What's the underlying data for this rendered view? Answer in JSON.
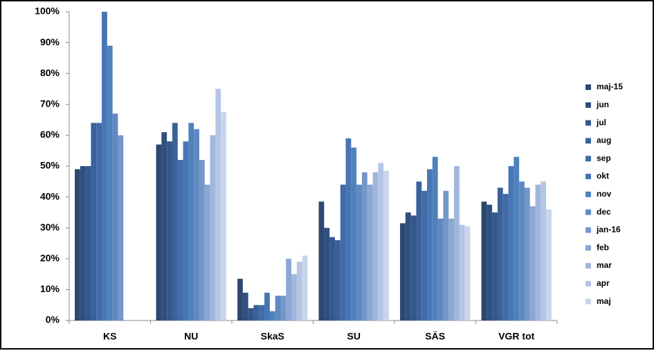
{
  "chart_data": {
    "type": "bar",
    "categories": [
      "KS",
      "NU",
      "SkaS",
      "SU",
      "SÄS",
      "VGR tot"
    ],
    "ylim": [
      0,
      100
    ],
    "yticks": [
      {
        "value": 0,
        "label": "0%"
      },
      {
        "value": 10,
        "label": "10%"
      },
      {
        "value": 20,
        "label": "20%"
      },
      {
        "value": 30,
        "label": "30%"
      },
      {
        "value": 40,
        "label": "40%"
      },
      {
        "value": 50,
        "label": "50%"
      },
      {
        "value": 60,
        "label": "60%"
      },
      {
        "value": 70,
        "label": "70%"
      },
      {
        "value": 80,
        "label": "80%"
      },
      {
        "value": 90,
        "label": "90%"
      },
      {
        "value": 100,
        "label": "100%"
      }
    ],
    "grid": false,
    "legend": "right",
    "series": [
      {
        "name": "maj-15",
        "color": "#2c4770",
        "values": [
          49,
          57,
          13.5,
          38.5,
          31.5,
          38.5
        ]
      },
      {
        "name": "jun",
        "color": "#2f4f7f",
        "values": [
          50,
          61,
          9,
          30,
          35,
          37.5
        ]
      },
      {
        "name": "jul",
        "color": "#34578c",
        "values": [
          50,
          58,
          4,
          27,
          34,
          35
        ]
      },
      {
        "name": "aug",
        "color": "#3a6199",
        "values": [
          64,
          64,
          5,
          26,
          45,
          43
        ]
      },
      {
        "name": "sep",
        "color": "#416ca8",
        "values": [
          64,
          52,
          5,
          44,
          42,
          41
        ]
      },
      {
        "name": "okt",
        "color": "#4876b4",
        "values": [
          100,
          58,
          9,
          59,
          49,
          50
        ]
      },
      {
        "name": "nov",
        "color": "#4f81bd",
        "values": [
          89,
          64,
          3,
          56,
          53,
          53
        ]
      },
      {
        "name": "dec",
        "color": "#6089c2",
        "values": [
          67,
          62,
          8,
          44,
          33,
          45
        ]
      },
      {
        "name": "jan-16",
        "color": "#7496c9",
        "values": [
          60,
          52,
          8,
          48,
          42,
          43
        ]
      },
      {
        "name": "feb",
        "color": "#8ba7d3",
        "values": [
          null,
          44,
          20,
          44,
          33,
          37
        ]
      },
      {
        "name": "mar",
        "color": "#a0b6dc",
        "values": [
          null,
          60,
          15,
          48,
          50,
          44
        ]
      },
      {
        "name": "apr",
        "color": "#b5c6e4",
        "values": [
          null,
          75,
          19,
          51,
          31,
          45
        ]
      },
      {
        "name": "maj",
        "color": "#c9d5ea",
        "values": [
          null,
          67.5,
          21,
          48.5,
          30.5,
          36
        ]
      }
    ]
  }
}
